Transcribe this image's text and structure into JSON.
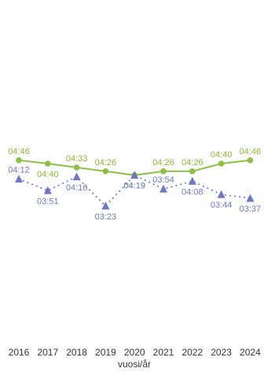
{
  "chart_data": {
    "type": "line",
    "title": "",
    "xlabel": "vuosi/år",
    "ylabel": "",
    "categories": [
      "2016",
      "2017",
      "2018",
      "2019",
      "2020",
      "2021",
      "2022",
      "2023",
      "2024"
    ],
    "series": [
      {
        "color": "#8cbf45",
        "label_color": "#8cb832",
        "marker": "circle",
        "line_style": "solid",
        "values": [
          286,
          280,
          273,
          266,
          259,
          266,
          266,
          280,
          286
        ],
        "labels": [
          "04:46",
          "04:40",
          "04:33",
          "04:26",
          "04:19",
          "04:26",
          "04:26",
          "04:40",
          "04:46"
        ]
      },
      {
        "color": "#6b78c9",
        "label_color": "#6b78c9",
        "marker": "triangle",
        "line_style": "dotted",
        "values": [
          252,
          231,
          256,
          203,
          259,
          234,
          248,
          224,
          217
        ],
        "labels": [
          "04:12",
          "03:51",
          "04:16",
          "03:23",
          "04:19",
          "03:54",
          "04:08",
          "03:44",
          "03:37"
        ]
      }
    ],
    "ylim": [
      0,
      480
    ],
    "grid": false,
    "legend": "none"
  }
}
